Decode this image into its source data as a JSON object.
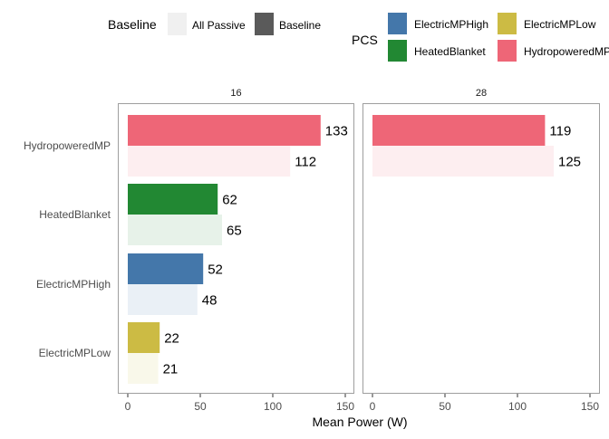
{
  "legend": {
    "baseline_title": "Baseline",
    "baseline_items": [
      {
        "label": "All Passive",
        "color": "#f0f0f0"
      },
      {
        "label": "Baseline",
        "color": "#5a5a5a"
      }
    ],
    "pcs_title": "PCS",
    "pcs_items": [
      {
        "label": "ElectricMPHigh",
        "color": "#4477aa"
      },
      {
        "label": "ElectricMPLow",
        "color": "#ccbb44"
      },
      {
        "label": "HeatedBlanket",
        "color": "#228833"
      },
      {
        "label": "HydropoweredMP",
        "color": "#ee6677"
      }
    ]
  },
  "chart_data": {
    "type": "bar",
    "orientation": "horizontal",
    "xlabel": "Mean Power (W)",
    "ylabel": "",
    "xlim": [
      0,
      155
    ],
    "xticks": [
      0,
      50,
      100,
      150
    ],
    "grid": false,
    "categories": [
      "HydropoweredMP",
      "HeatedBlanket",
      "ElectricMPHigh",
      "ElectricMPLow"
    ],
    "category_colors": {
      "HydropoweredMP": "#ee6677",
      "HeatedBlanket": "#228833",
      "ElectricMPHigh": "#4477aa",
      "ElectricMPLow": "#ccbb44"
    },
    "bar_order": [
      "Baseline",
      "All Passive"
    ],
    "facets": [
      {
        "title": "16",
        "bars": [
          {
            "category": "HydropoweredMP",
            "baseline": "Baseline",
            "value": 133
          },
          {
            "category": "HydropoweredMP",
            "baseline": "All Passive",
            "value": 112
          },
          {
            "category": "HeatedBlanket",
            "baseline": "Baseline",
            "value": 62
          },
          {
            "category": "HeatedBlanket",
            "baseline": "All Passive",
            "value": 65
          },
          {
            "category": "ElectricMPHigh",
            "baseline": "Baseline",
            "value": 52
          },
          {
            "category": "ElectricMPHigh",
            "baseline": "All Passive",
            "value": 48
          },
          {
            "category": "ElectricMPLow",
            "baseline": "Baseline",
            "value": 22
          },
          {
            "category": "ElectricMPLow",
            "baseline": "All Passive",
            "value": 21
          }
        ]
      },
      {
        "title": "28",
        "bars": [
          {
            "category": "HydropoweredMP",
            "baseline": "Baseline",
            "value": 119
          },
          {
            "category": "HydropoweredMP",
            "baseline": "All Passive",
            "value": 125
          }
        ]
      }
    ]
  }
}
